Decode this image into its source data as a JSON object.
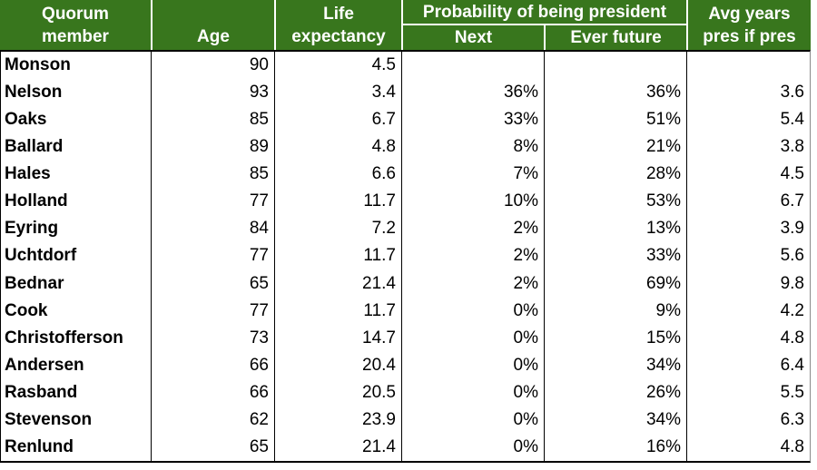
{
  "colors": {
    "header_bg": "#38761d",
    "header_text": "#ffffff",
    "body_bg": "#ffffff",
    "body_text": "#000000",
    "grid_line": "#000000"
  },
  "table": {
    "header": {
      "member": "Quorum member",
      "age": "Age",
      "life_expectancy": "Life expectancy",
      "probability_group": "Probability of being president",
      "next": "Next",
      "ever_future": "Ever future",
      "avg_years": "Avg years pres if pres"
    },
    "rows": [
      {
        "member": "Monson",
        "age": "90",
        "life_expectancy": "4.5",
        "next": "",
        "ever_future": "",
        "avg_years": ""
      },
      {
        "member": "Nelson",
        "age": "93",
        "life_expectancy": "3.4",
        "next": "36%",
        "ever_future": "36%",
        "avg_years": "3.6"
      },
      {
        "member": "Oaks",
        "age": "85",
        "life_expectancy": "6.7",
        "next": "33%",
        "ever_future": "51%",
        "avg_years": "5.4"
      },
      {
        "member": "Ballard",
        "age": "89",
        "life_expectancy": "4.8",
        "next": "8%",
        "ever_future": "21%",
        "avg_years": "3.8"
      },
      {
        "member": "Hales",
        "age": "85",
        "life_expectancy": "6.6",
        "next": "7%",
        "ever_future": "28%",
        "avg_years": "4.5"
      },
      {
        "member": "Holland",
        "age": "77",
        "life_expectancy": "11.7",
        "next": "10%",
        "ever_future": "53%",
        "avg_years": "6.7"
      },
      {
        "member": "Eyring",
        "age": "84",
        "life_expectancy": "7.2",
        "next": "2%",
        "ever_future": "13%",
        "avg_years": "3.9"
      },
      {
        "member": "Uchtdorf",
        "age": "77",
        "life_expectancy": "11.7",
        "next": "2%",
        "ever_future": "33%",
        "avg_years": "5.6"
      },
      {
        "member": "Bednar",
        "age": "65",
        "life_expectancy": "21.4",
        "next": "2%",
        "ever_future": "69%",
        "avg_years": "9.8"
      },
      {
        "member": "Cook",
        "age": "77",
        "life_expectancy": "11.7",
        "next": "0%",
        "ever_future": "9%",
        "avg_years": "4.2"
      },
      {
        "member": "Christofferson",
        "age": "73",
        "life_expectancy": "14.7",
        "next": "0%",
        "ever_future": "15%",
        "avg_years": "4.8"
      },
      {
        "member": "Andersen",
        "age": "66",
        "life_expectancy": "20.4",
        "next": "0%",
        "ever_future": "34%",
        "avg_years": "6.4"
      },
      {
        "member": "Rasband",
        "age": "66",
        "life_expectancy": "20.5",
        "next": "0%",
        "ever_future": "26%",
        "avg_years": "5.5"
      },
      {
        "member": "Stevenson",
        "age": "62",
        "life_expectancy": "23.9",
        "next": "0%",
        "ever_future": "34%",
        "avg_years": "6.3"
      },
      {
        "member": "Renlund",
        "age": "65",
        "life_expectancy": "21.4",
        "next": "0%",
        "ever_future": "16%",
        "avg_years": "4.8"
      }
    ]
  },
  "chart_data": {
    "type": "table",
    "columns": [
      "Quorum member",
      "Age",
      "Life expectancy",
      "Probability of being president - Next",
      "Probability of being president - Ever future",
      "Avg years pres if pres"
    ],
    "rows": [
      [
        "Monson",
        90,
        4.5,
        null,
        null,
        null
      ],
      [
        "Nelson",
        93,
        3.4,
        "36%",
        "36%",
        3.6
      ],
      [
        "Oaks",
        85,
        6.7,
        "33%",
        "51%",
        5.4
      ],
      [
        "Ballard",
        89,
        4.8,
        "8%",
        "21%",
        3.8
      ],
      [
        "Hales",
        85,
        6.6,
        "7%",
        "28%",
        4.5
      ],
      [
        "Holland",
        77,
        11.7,
        "10%",
        "53%",
        6.7
      ],
      [
        "Eyring",
        84,
        7.2,
        "2%",
        "13%",
        3.9
      ],
      [
        "Uchtdorf",
        77,
        11.7,
        "2%",
        "33%",
        5.6
      ],
      [
        "Bednar",
        65,
        21.4,
        "2%",
        "69%",
        9.8
      ],
      [
        "Cook",
        77,
        11.7,
        "0%",
        "9%",
        4.2
      ],
      [
        "Christofferson",
        73,
        14.7,
        "0%",
        "15%",
        4.8
      ],
      [
        "Andersen",
        66,
        20.4,
        "0%",
        "34%",
        6.4
      ],
      [
        "Rasband",
        66,
        20.5,
        "0%",
        "26%",
        5.5
      ],
      [
        "Stevenson",
        62,
        23.9,
        "0%",
        "34%",
        6.3
      ],
      [
        "Renlund",
        65,
        21.4,
        "0%",
        "16%",
        4.8
      ]
    ]
  }
}
